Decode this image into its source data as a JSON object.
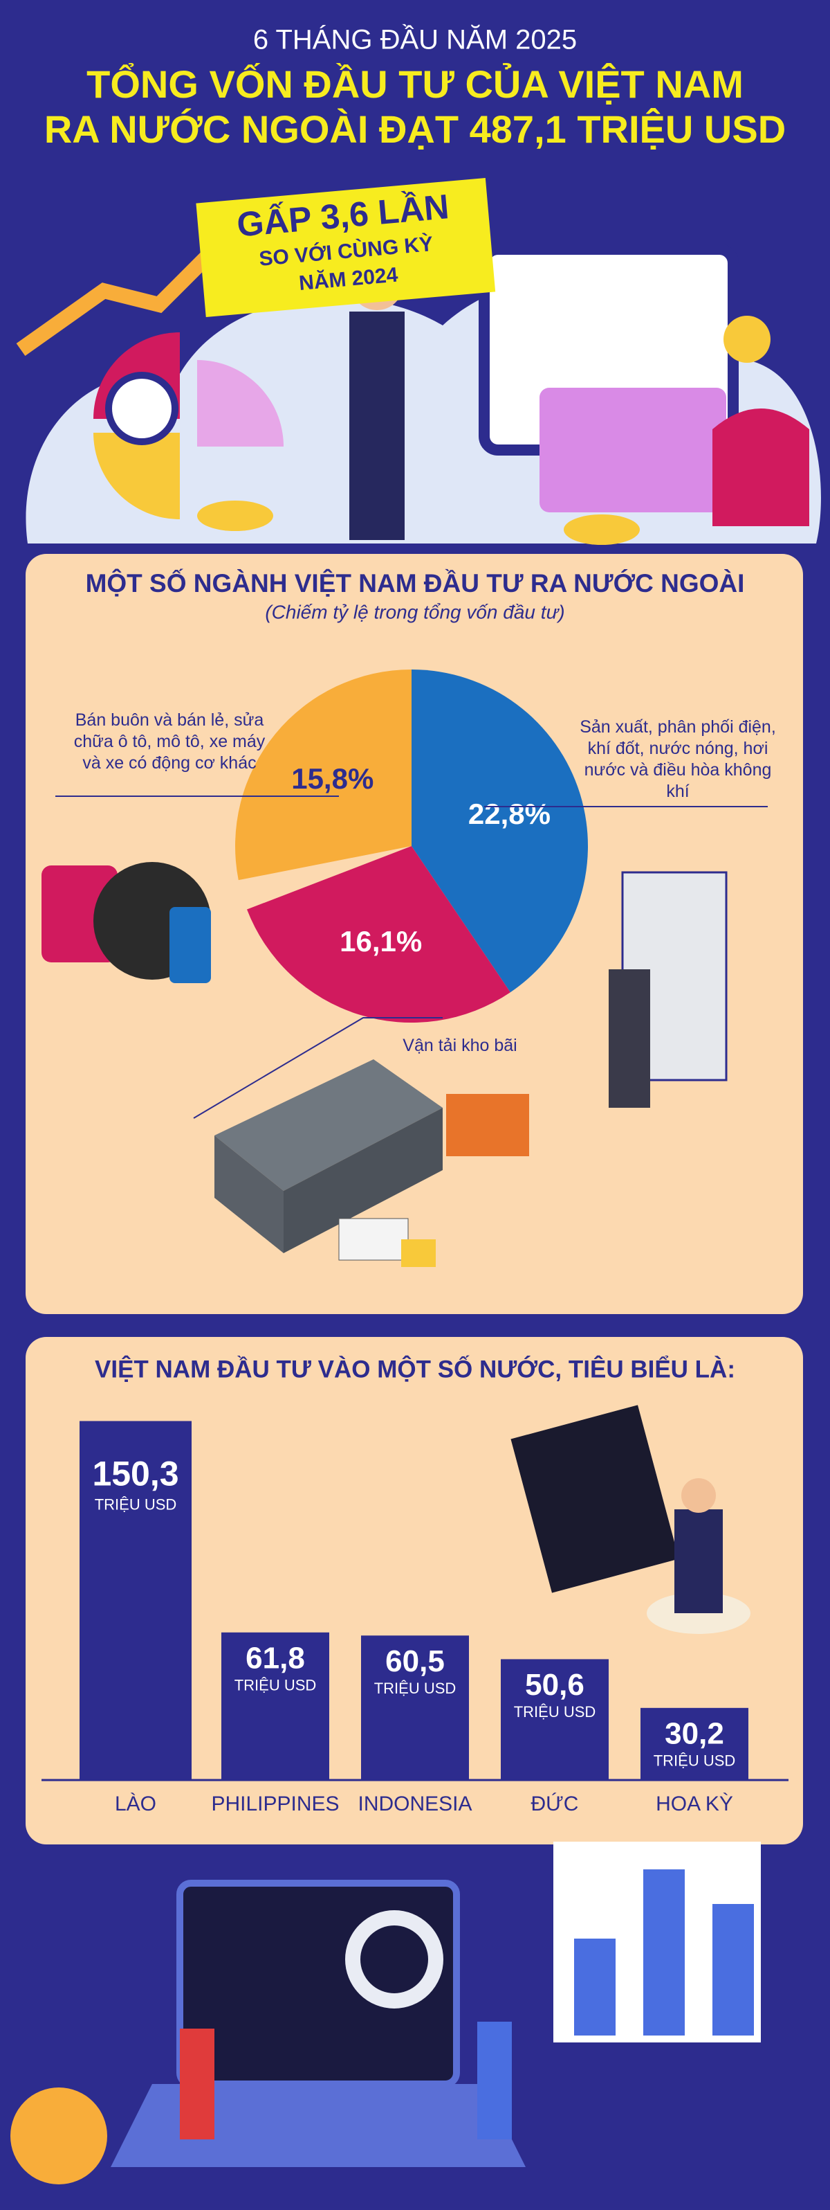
{
  "header": {
    "subtitle": "6 THÁNG ĐẦU NĂM 2025",
    "title": [
      "TỔNG VỐN ĐẦU TƯ CỦA VIỆT NAM",
      "RA NƯỚC NGOÀI ĐẠT 487,1 TRIỆU USD"
    ],
    "highlight": [
      "GẤP 3,6 LẦN",
      "SO VỚI CÙNG KỲ",
      "NĂM 2024"
    ]
  },
  "chart_data": [
    {
      "type": "pie",
      "title": "MỘT SỐ NGÀNH VIỆT NAM ĐẦU TƯ RA NƯỚC NGOÀI",
      "subtitle": "(Chiếm tỷ lệ trong tổng vốn đầu tư)",
      "categories": [
        "Sản xuất, phân phối điện, khí đốt, nước nóng, hơi nước và điều hòa không khí",
        "Vận tải kho bãi",
        "Bán buôn và bán lẻ, sửa chữa ô tô, mô tô, xe máy và xe có động cơ khác"
      ],
      "values": [
        22.8,
        16.1,
        15.8
      ],
      "value_labels": [
        "22,8%",
        "16,1%",
        "15,8%"
      ],
      "colors": [
        "#1b6fc0",
        "#d11a5e",
        "#f8ad3a"
      ]
    },
    {
      "type": "bar",
      "title": "VIỆT NAM ĐẦU TƯ VÀO MỘT SỐ NƯỚC, TIÊU BIỂU LÀ:",
      "categories": [
        "LÀO",
        "PHILIPPINES",
        "INDONESIA",
        "ĐỨC",
        "HOA KỲ"
      ],
      "values": [
        150.3,
        61.8,
        60.5,
        50.6,
        30.2
      ],
      "value_labels": [
        "150,3",
        "61,8",
        "60,5",
        "50,6",
        "30,2"
      ],
      "unit": "TRIỆU USD",
      "color": "#2d2c8e"
    }
  ]
}
